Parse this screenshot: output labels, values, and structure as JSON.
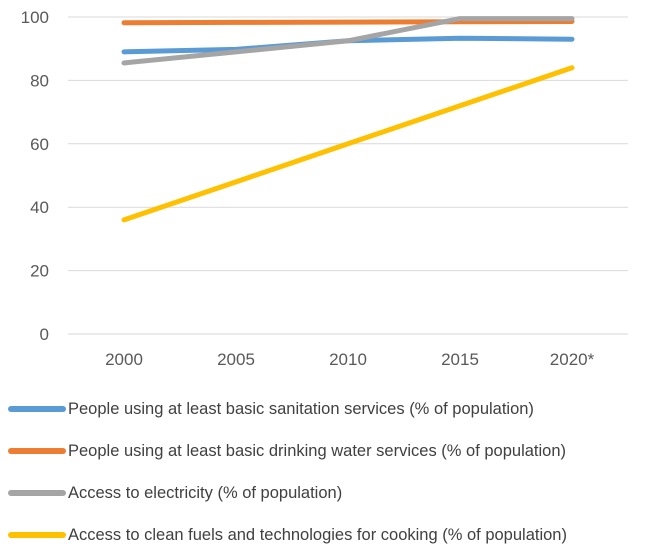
{
  "chart_data": {
    "type": "line",
    "title": "",
    "xlabel": "",
    "ylabel": "",
    "categories": [
      "2000",
      "2005",
      "2010",
      "2015",
      "2020*"
    ],
    "ylim": [
      0,
      100
    ],
    "yticks": [
      "0",
      "20",
      "40",
      "60",
      "80",
      "100"
    ],
    "grid": true,
    "legend_position": "bottom",
    "series": [
      {
        "name": "People using at least basic sanitation services (% of population)",
        "color": "#5b9bd5",
        "values": [
          89,
          89.8,
          92.5,
          93.3,
          93
        ]
      },
      {
        "name": "People using at least basic drinking water services (% of population)",
        "color": "#ed7d31",
        "values": [
          98.2,
          98.3,
          98.4,
          98.5,
          98.6
        ]
      },
      {
        "name": "Access to electricity (% of population)",
        "color": "#a5a5a5",
        "values": [
          85.5,
          89,
          92.5,
          99.5,
          99.5
        ]
      },
      {
        "name": "Access to clean fuels and technologies for cooking (% of population)",
        "color": "#ffc000",
        "values": [
          36,
          48,
          60,
          72,
          84
        ]
      }
    ]
  }
}
